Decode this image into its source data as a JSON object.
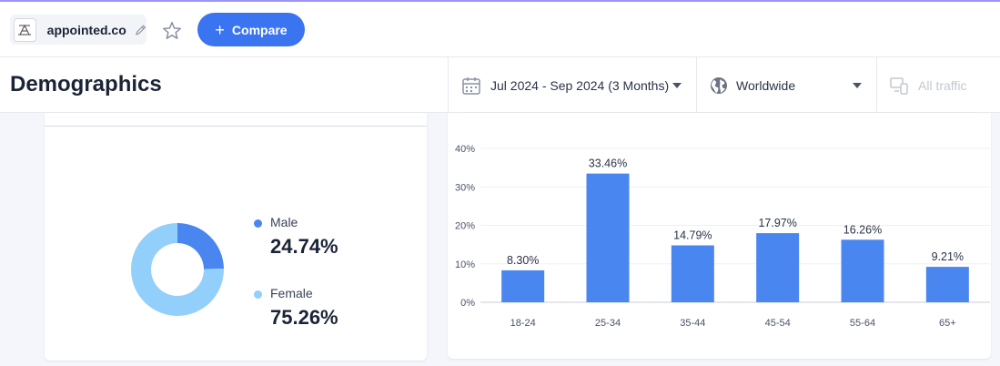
{
  "site": {
    "domain": "appointed.co",
    "favicon_icon": "logo-icon"
  },
  "toolbar": {
    "compare_label": "Compare",
    "compare_icon": "plus-icon"
  },
  "page": {
    "title": "Demographics"
  },
  "filters": {
    "date_range": "Jul 2024 - Sep 2024 (3 Months)",
    "region": "Worldwide",
    "traffic": "All traffic"
  },
  "colors": {
    "accent": "#3b74f0",
    "male": "#4a86f0",
    "female": "#92d0fb",
    "bar": "#4a86f0"
  },
  "gender": {
    "male_label": "Male",
    "male_value": "24.74%",
    "female_label": "Female",
    "female_value": "75.26%"
  },
  "chart_data": [
    {
      "type": "pie",
      "categories": [
        "Male",
        "Female"
      ],
      "values": [
        24.74,
        75.26
      ],
      "donut": true
    },
    {
      "type": "bar",
      "categories": [
        "18-24",
        "25-34",
        "35-44",
        "45-54",
        "55-64",
        "65+"
      ],
      "values": [
        8.3,
        33.46,
        14.79,
        17.97,
        16.26,
        9.21
      ],
      "data_labels": [
        "8.30%",
        "33.46%",
        "14.79%",
        "17.97%",
        "16.26%",
        "9.21%"
      ],
      "yticks": [
        "0%",
        "10%",
        "20%",
        "30%",
        "40%"
      ],
      "ylim": [
        0,
        40
      ],
      "grid": true
    }
  ]
}
